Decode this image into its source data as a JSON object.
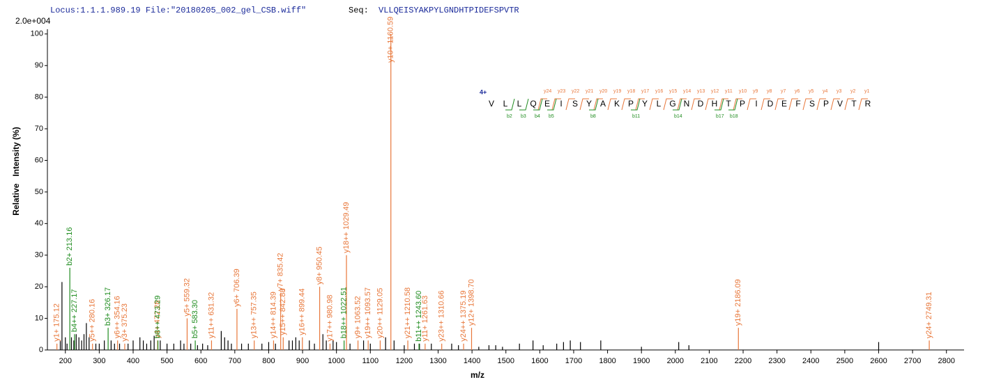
{
  "chart_data": {
    "type": "spectrum",
    "header": "Locus:1.1.1.989.19 File:\"20180205_002_gel_CSB.wiff\"",
    "seq_label": "Seq:",
    "sequence": "VLLQEISYAKPYLGNDHTPIDEFSPVTR",
    "scale_label": "2.0e+004",
    "ylabel": "Relative   Intensity (%)",
    "xlabel": "m/z",
    "xlim": [
      147,
      2852
    ],
    "ylim": [
      0,
      101.5
    ],
    "xticks": [
      200,
      300,
      400,
      500,
      600,
      700,
      800,
      900,
      1000,
      1100,
      1200,
      1300,
      1400,
      1500,
      1600,
      1700,
      1800,
      1900,
      2000,
      2100,
      2200,
      2300,
      2400,
      2500,
      2600,
      2700,
      2800
    ],
    "yticks": [
      0,
      10,
      20,
      30,
      40,
      50,
      60,
      70,
      80,
      90,
      100
    ],
    "series": [
      {
        "color": "#000000",
        "peaks": [
          {
            "x": 190,
            "y": 21.5
          },
          {
            "x": 185,
            "y": 3
          },
          {
            "x": 200,
            "y": 4
          },
          {
            "x": 205,
            "y": 2
          },
          {
            "x": 218,
            "y": 4
          },
          {
            "x": 225,
            "y": 3
          },
          {
            "x": 232,
            "y": 5
          },
          {
            "x": 240,
            "y": 4
          },
          {
            "x": 248,
            "y": 3
          },
          {
            "x": 255,
            "y": 5
          },
          {
            "x": 262,
            "y": 8.5
          },
          {
            "x": 270,
            "y": 4
          },
          {
            "x": 290,
            "y": 2
          },
          {
            "x": 300,
            "y": 2
          },
          {
            "x": 315,
            "y": 3
          },
          {
            "x": 335,
            "y": 3
          },
          {
            "x": 345,
            "y": 2
          },
          {
            "x": 360,
            "y": 2
          },
          {
            "x": 385,
            "y": 2
          },
          {
            "x": 400,
            "y": 3
          },
          {
            "x": 420,
            "y": 4
          },
          {
            "x": 430,
            "y": 3
          },
          {
            "x": 440,
            "y": 2
          },
          {
            "x": 452,
            "y": 3
          },
          {
            "x": 462,
            "y": 4.5
          },
          {
            "x": 480,
            "y": 3
          },
          {
            "x": 500,
            "y": 2
          },
          {
            "x": 520,
            "y": 2
          },
          {
            "x": 540,
            "y": 3
          },
          {
            "x": 550,
            "y": 2
          },
          {
            "x": 570,
            "y": 2
          },
          {
            "x": 590,
            "y": 1.5
          },
          {
            "x": 605,
            "y": 2
          },
          {
            "x": 620,
            "y": 1.5
          },
          {
            "x": 660,
            "y": 6
          },
          {
            "x": 670,
            "y": 4
          },
          {
            "x": 680,
            "y": 3
          },
          {
            "x": 690,
            "y": 2
          },
          {
            "x": 720,
            "y": 2
          },
          {
            "x": 740,
            "y": 2
          },
          {
            "x": 780,
            "y": 2
          },
          {
            "x": 800,
            "y": 2.5
          },
          {
            "x": 820,
            "y": 2
          },
          {
            "x": 860,
            "y": 3
          },
          {
            "x": 870,
            "y": 3
          },
          {
            "x": 880,
            "y": 4
          },
          {
            "x": 890,
            "y": 3
          },
          {
            "x": 920,
            "y": 3
          },
          {
            "x": 935,
            "y": 2
          },
          {
            "x": 960,
            "y": 5
          },
          {
            "x": 970,
            "y": 3
          },
          {
            "x": 990,
            "y": 3
          },
          {
            "x": 1000,
            "y": 2.5
          },
          {
            "x": 1040,
            "y": 2
          },
          {
            "x": 1080,
            "y": 3
          },
          {
            "x": 1100,
            "y": 2
          },
          {
            "x": 1145,
            "y": 4
          },
          {
            "x": 1170,
            "y": 3
          },
          {
            "x": 1200,
            "y": 1.5
          },
          {
            "x": 1230,
            "y": 2
          },
          {
            "x": 1245,
            "y": 2
          },
          {
            "x": 1280,
            "y": 2
          },
          {
            "x": 1340,
            "y": 2
          },
          {
            "x": 1360,
            "y": 1.5
          },
          {
            "x": 1420,
            "y": 1
          },
          {
            "x": 1450,
            "y": 1.5
          },
          {
            "x": 1470,
            "y": 1.5
          },
          {
            "x": 1490,
            "y": 1
          },
          {
            "x": 1540,
            "y": 2
          },
          {
            "x": 1580,
            "y": 3
          },
          {
            "x": 1610,
            "y": 1.5
          },
          {
            "x": 1650,
            "y": 2
          },
          {
            "x": 1670,
            "y": 2.5
          },
          {
            "x": 1690,
            "y": 3
          },
          {
            "x": 1720,
            "y": 2.5
          },
          {
            "x": 1780,
            "y": 3
          },
          {
            "x": 1900,
            "y": 1
          },
          {
            "x": 2010,
            "y": 2.5
          },
          {
            "x": 2040,
            "y": 1.5
          },
          {
            "x": 2600,
            "y": 2.5
          }
        ]
      },
      {
        "color": "#e8773a",
        "peaks": [
          {
            "x": 175.12,
            "y": 2,
            "label": "y1+ 175.12"
          },
          {
            "x": 280.16,
            "y": 2,
            "label": "y5++ 280.16"
          },
          {
            "x": 354.16,
            "y": 3,
            "label": "y6++ 354.16"
          },
          {
            "x": 375.23,
            "y": 2,
            "label": "y3+ 375.23"
          },
          {
            "x": 472.28,
            "y": 3,
            "label": "y4+ 472.28"
          },
          {
            "x": 559.32,
            "y": 10,
            "label": "y5+ 559.32"
          },
          {
            "x": 631.32,
            "y": 3,
            "label": "y11++ 631.32"
          },
          {
            "x": 706.39,
            "y": 13,
            "label": "y6+ 706.39"
          },
          {
            "x": 757.35,
            "y": 3,
            "label": "y13++ 757.35"
          },
          {
            "x": 814.39,
            "y": 3,
            "label": "y14++ 814.39"
          },
          {
            "x": 835.42,
            "y": 18,
            "label": "y7+ 835.42"
          },
          {
            "x": 842.88,
            "y": 4,
            "label": "y15++ 842.88"
          },
          {
            "x": 899.44,
            "y": 4,
            "label": "y16++ 899.44"
          },
          {
            "x": 950.45,
            "y": 20,
            "label": "y8+ 950.45"
          },
          {
            "x": 980.98,
            "y": 2,
            "label": "y17++ 980.98"
          },
          {
            "x": 1029.49,
            "y": 30,
            "label": "y18++ 1029.49"
          },
          {
            "x": 1063.52,
            "y": 3,
            "label": "y9+ 1063.52"
          },
          {
            "x": 1093.57,
            "y": 3,
            "label": "y19++ 1093.57"
          },
          {
            "x": 1129.05,
            "y": 3,
            "label": "y20++ 1129.05"
          },
          {
            "x": 1160.59,
            "y": 100,
            "label": "y10+ 1160.59"
          },
          {
            "x": 1210.58,
            "y": 3,
            "label": "y21++ 1210.58"
          },
          {
            "x": 1261.63,
            "y": 2,
            "label": "y11+ 1261.63"
          },
          {
            "x": 1310.66,
            "y": 2,
            "label": "y23++ 1310.66"
          },
          {
            "x": 1375.19,
            "y": 2,
            "label": "y24++ 1375.19"
          },
          {
            "x": 1398.7,
            "y": 7,
            "label": "y12+ 1398.70"
          },
          {
            "x": 2186.09,
            "y": 7,
            "label": "y19+ 2186.09"
          },
          {
            "x": 2749.31,
            "y": 3,
            "label": "y24+ 2749.31"
          }
        ]
      },
      {
        "color": "#1f8c1f",
        "peaks": [
          {
            "x": 213.16,
            "y": 26,
            "label": "b2+ 213.16"
          },
          {
            "x": 227.17,
            "y": 5,
            "label": "b4++ 227.17"
          },
          {
            "x": 326.17,
            "y": 7,
            "label": "b3+ 326.17"
          },
          {
            "x": 473.29,
            "y": 3,
            "label": "b8++ 473.29"
          },
          {
            "x": 583.3,
            "y": 3,
            "label": "b5+ 583.30"
          },
          {
            "x": 1022.51,
            "y": 3,
            "label": "b18++ 1022.51"
          },
          {
            "x": 1243.6,
            "y": 2,
            "label": "b11++ 1243.60"
          }
        ]
      }
    ],
    "sequence_map": {
      "charge": "4+",
      "residues": [
        "V",
        "L",
        "L",
        "Q",
        "E",
        "I",
        "S",
        "Y",
        "A",
        "K",
        "P",
        "Y",
        "L",
        "G",
        "N",
        "D",
        "H",
        "T",
        "P",
        "I",
        "D",
        "E",
        "F",
        "S",
        "P",
        "V",
        "T",
        "R"
      ],
      "y_ions": [
        "y24",
        "y23",
        "y22",
        "y21",
        "y20",
        "y19",
        "y18",
        "y17",
        "y16",
        "y15",
        "y14",
        "y13",
        "y12",
        "y11",
        "y10",
        "y9",
        "y8",
        "y7",
        "y6",
        "y5",
        "y4",
        "y3",
        "y2",
        "y1"
      ],
      "b_ions": [
        "b2",
        "b3",
        "b4",
        "b5",
        "b8",
        "b11",
        "b14",
        "b17",
        "b18"
      ]
    }
  }
}
